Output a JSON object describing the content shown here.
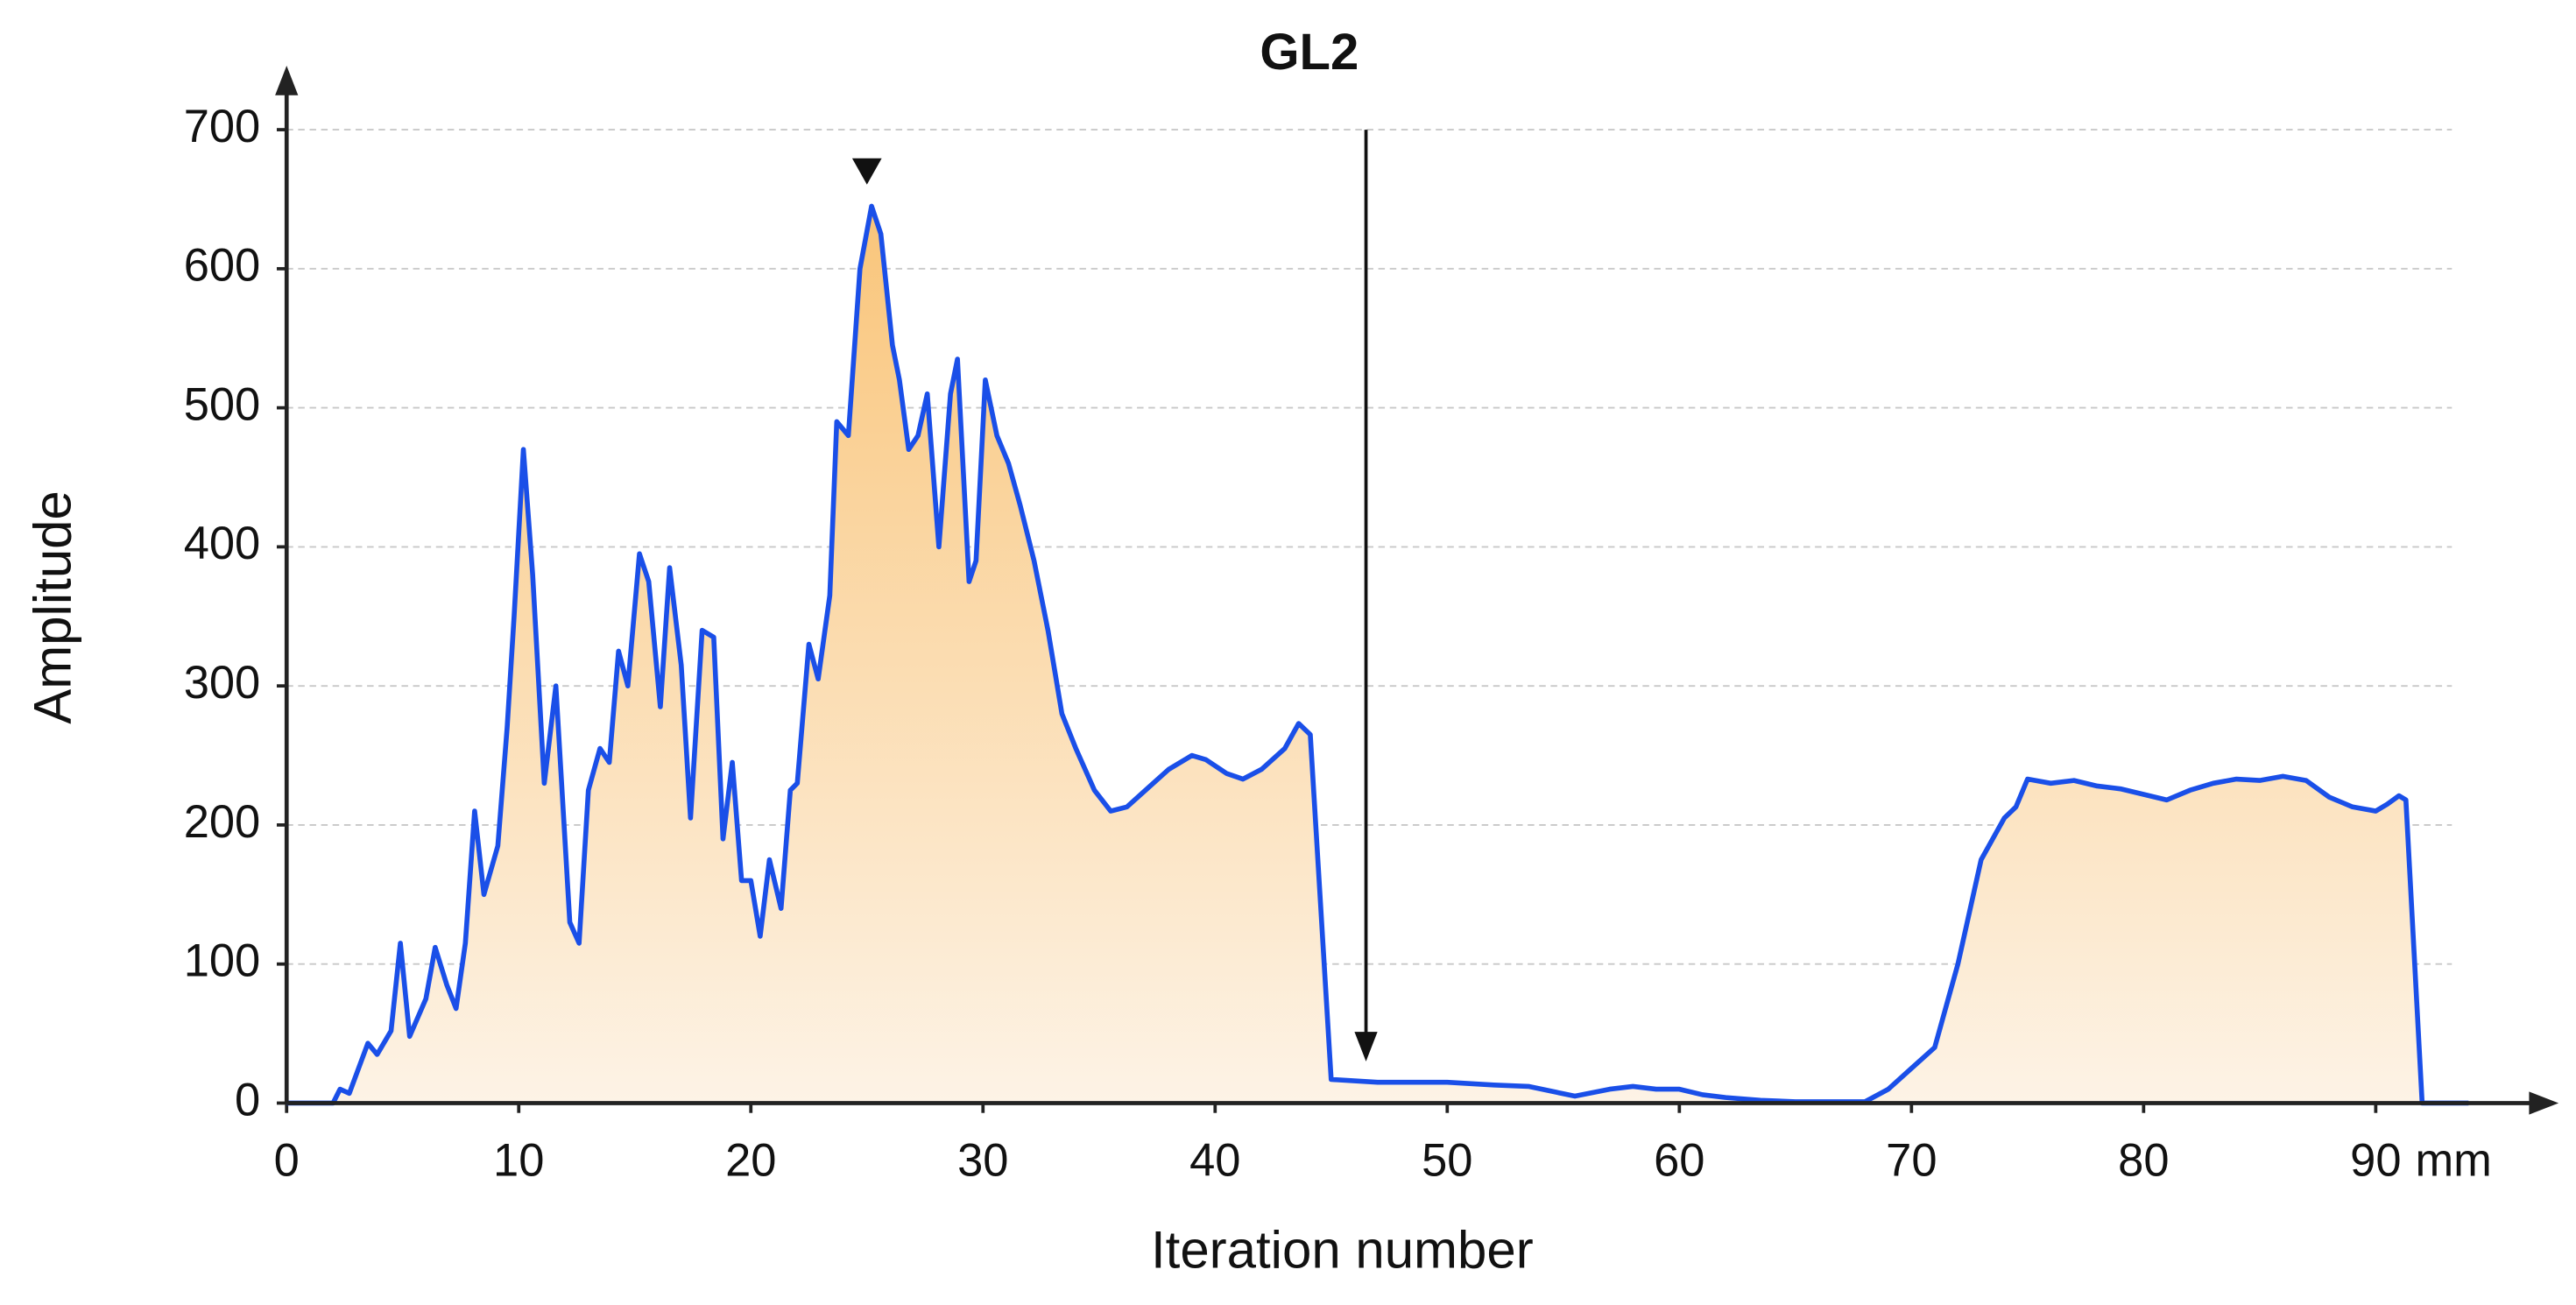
{
  "chart_data": {
    "type": "area",
    "title": "GL2",
    "x_label": "Iteration number",
    "x_unit": "mm",
    "y_label": "Amplitude",
    "xlim": [
      0,
      94
    ],
    "ylim": [
      0,
      700
    ],
    "xticks": [
      0,
      10,
      20,
      30,
      40,
      50,
      60,
      70,
      80,
      90
    ],
    "yticks": [
      0,
      100,
      200,
      300,
      400,
      500,
      600,
      700
    ],
    "grid": true,
    "x": [
      0,
      2,
      2.3,
      2.7,
      3.5,
      3.9,
      4.5,
      4.9,
      5.3,
      6,
      6.4,
      6.9,
      7.3,
      7.7,
      8.1,
      8.5,
      9.1,
      9.5,
      9.8,
      10.2,
      10.6,
      11.1,
      11.6,
      12.2,
      12.6,
      13,
      13.5,
      13.9,
      14.3,
      14.7,
      15.2,
      15.6,
      16.1,
      16.5,
      17,
      17.4,
      17.9,
      18.4,
      18.8,
      19.2,
      19.6,
      20,
      20.4,
      20.8,
      21.3,
      21.7,
      22,
      22.5,
      22.9,
      23.4,
      23.7,
      24.2,
      24.7,
      25.2,
      25.6,
      26.1,
      26.4,
      26.8,
      27.2,
      27.6,
      28.1,
      28.6,
      28.9,
      29.4,
      29.7,
      30.1,
      30.6,
      31.1,
      31.6,
      32.2,
      32.8,
      33.4,
      34,
      34.8,
      35.5,
      36.2,
      37,
      38,
      39,
      39.6,
      40.5,
      41.2,
      42,
      43,
      43.6,
      44.1,
      45,
      47,
      50,
      52,
      53.5,
      55.5,
      57,
      58,
      59,
      60,
      61,
      62,
      63.5,
      65,
      68,
      69,
      70,
      71,
      72,
      73,
      74,
      74.5,
      75,
      76,
      77,
      78,
      79,
      80,
      81,
      82,
      83,
      84,
      85,
      86,
      87,
      88,
      89,
      90,
      90.5,
      91,
      91.3,
      92,
      94
    ],
    "series": [
      {
        "name": "GL2",
        "color": "#1a4fe8",
        "fill": "#f9c57a",
        "values": [
          0,
          0,
          10,
          7,
          43,
          35,
          52,
          115,
          48,
          75,
          112,
          85,
          68,
          115,
          210,
          150,
          185,
          270,
          350,
          470,
          380,
          230,
          300,
          130,
          115,
          225,
          255,
          245,
          325,
          300,
          395,
          375,
          285,
          385,
          315,
          205,
          340,
          335,
          190,
          245,
          160,
          160,
          120,
          175,
          140,
          225,
          230,
          330,
          305,
          365,
          490,
          480,
          600,
          645,
          625,
          545,
          520,
          470,
          480,
          510,
          400,
          510,
          535,
          375,
          390,
          520,
          480,
          460,
          430,
          390,
          340,
          280,
          255,
          225,
          210,
          213,
          225,
          240,
          250,
          247,
          237,
          233,
          240,
          255,
          273,
          265,
          17,
          15,
          15,
          13,
          12,
          5,
          10,
          12,
          10,
          10,
          6,
          4,
          2,
          1,
          1,
          10,
          25,
          40,
          100,
          175,
          205,
          213,
          233,
          230,
          232,
          228,
          226,
          222,
          218,
          225,
          230,
          233,
          232,
          235,
          232,
          220,
          213,
          210,
          215,
          221,
          218,
          0,
          0
        ]
      }
    ],
    "annotations": {
      "arrow": {
        "x": 46.5,
        "y_start": 700,
        "y_end": 30
      },
      "marker": {
        "x": 25,
        "y": 670
      }
    }
  }
}
